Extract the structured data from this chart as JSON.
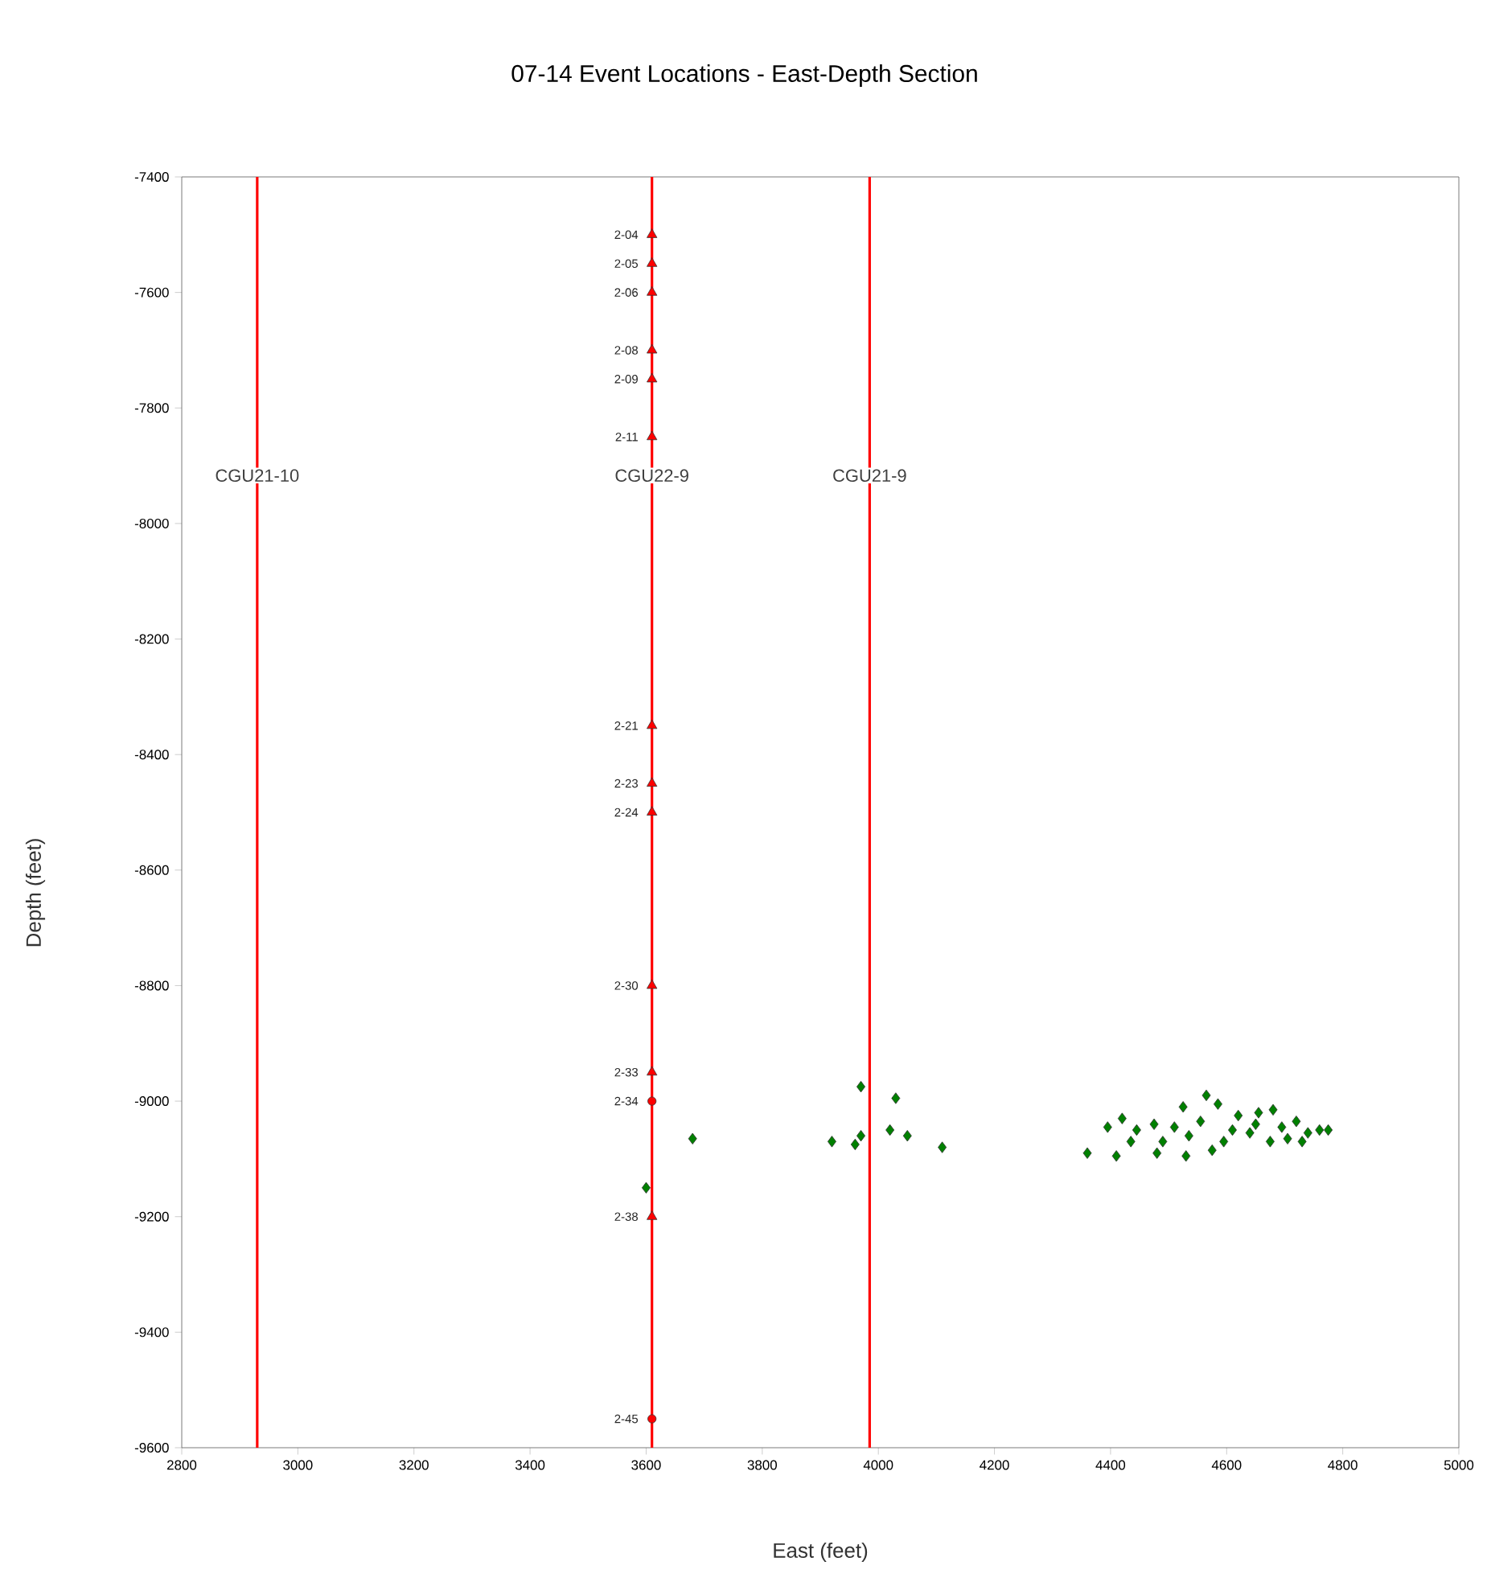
{
  "chart_data": {
    "type": "scatter",
    "title": "07-14 Event Locations - East-Depth Section",
    "xlabel": "East (feet)",
    "ylabel": "Depth (feet)",
    "xlim": [
      2800,
      5000
    ],
    "ylim": [
      -9600,
      -7400
    ],
    "xticks": [
      2800,
      3000,
      3200,
      3400,
      3600,
      3800,
      4000,
      4200,
      4400,
      4600,
      4800,
      5000
    ],
    "yticks": [
      -9600,
      -9400,
      -9200,
      -9000,
      -8800,
      -8600,
      -8400,
      -8200,
      -8000,
      -7800,
      -7600,
      -7400
    ],
    "grid": false,
    "ref_lines": [
      {
        "axis": "x",
        "value": 2930,
        "label": "CGU21-10",
        "color": "#ff0000"
      },
      {
        "axis": "x",
        "value": 3610,
        "label": "CGU22-9",
        "color": "#ff0000"
      },
      {
        "axis": "x",
        "value": 3985,
        "label": "CGU21-9",
        "color": "#ff0000"
      }
    ],
    "series": [
      {
        "marker": "triangle",
        "color": "#ff0000",
        "x": [
          3610,
          3610,
          3610,
          3610,
          3610,
          3610,
          3610,
          3610,
          3610,
          3610,
          3610,
          3610
        ],
        "values": [
          -7500,
          -7550,
          -7600,
          -7700,
          -7750,
          -7850,
          -8350,
          -8450,
          -8500,
          -8800,
          -8950,
          -9200
        ],
        "value_labels": [
          "2-04",
          "2-05",
          "2-06",
          "2-08",
          "2-09",
          "2-11",
          "2-21",
          "2-23",
          "2-24",
          "2-30",
          "2-33",
          "2-38"
        ]
      },
      {
        "marker": "circle",
        "color": "#ff0000",
        "x": [
          3610,
          3610
        ],
        "values": [
          -9000,
          -9550
        ],
        "value_labels": [
          "2-34",
          "2-45"
        ]
      },
      {
        "marker": "diamond",
        "color": "#008000",
        "x": [
          3680,
          3600,
          3970,
          4030,
          3920,
          3960,
          3970,
          4020,
          4050,
          4110,
          4360,
          4410,
          4395,
          4420,
          4445,
          4475,
          4490,
          4525,
          4565,
          4585,
          4535,
          4555,
          4510,
          4595,
          4620,
          4640,
          4655,
          4680,
          4695,
          4720,
          4740,
          4730,
          4760,
          4775,
          4675,
          4610,
          4530,
          4480,
          4435,
          4575,
          4650,
          4705
        ],
        "values": [
          -9065,
          -9150,
          -8975,
          -8995,
          -9070,
          -9075,
          -9060,
          -9050,
          -9060,
          -9080,
          -9090,
          -9095,
          -9045,
          -9030,
          -9050,
          -9040,
          -9070,
          -9010,
          -8990,
          -9005,
          -9060,
          -9035,
          -9045,
          -9070,
          -9025,
          -9055,
          -9020,
          -9015,
          -9045,
          -9035,
          -9055,
          -9070,
          -9050,
          -9050,
          -9070,
          -9050,
          -9095,
          -9090,
          -9070,
          -9085,
          -9040,
          -9065
        ]
      }
    ]
  }
}
